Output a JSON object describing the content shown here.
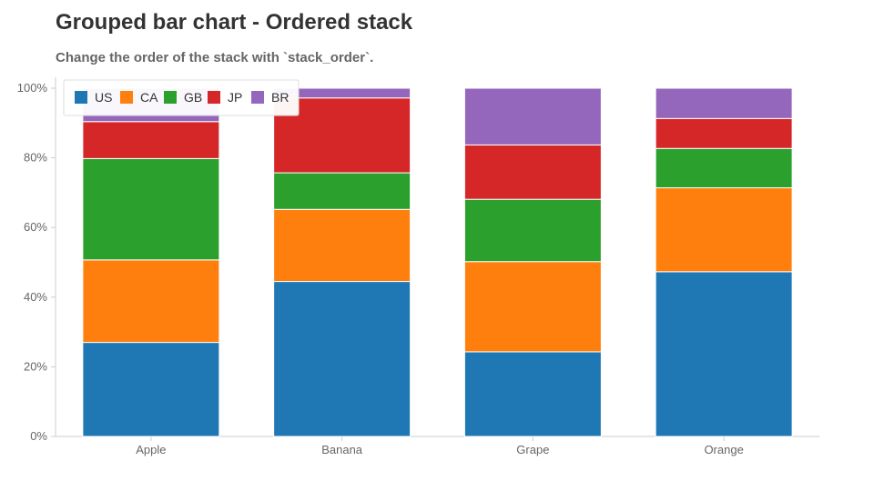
{
  "header": {
    "title": "Grouped bar chart - Ordered stack",
    "subtitle": "Change the order of the stack with `stack_order`."
  },
  "chart_data": {
    "type": "bar",
    "stacked": true,
    "normalized": true,
    "categories": [
      "Apple",
      "Banana",
      "Grape",
      "Orange"
    ],
    "series": [
      {
        "name": "US",
        "color": "#1f77b4",
        "values": [
          27,
          44.5,
          24.3,
          47.3
        ]
      },
      {
        "name": "CA",
        "color": "#ff7f0e",
        "values": [
          23.7,
          20.7,
          25.9,
          24.1
        ]
      },
      {
        "name": "GB",
        "color": "#2ca02c",
        "values": [
          29.1,
          10.5,
          17.9,
          11.3
        ]
      },
      {
        "name": "JP",
        "color": "#d62728",
        "values": [
          10.6,
          21.5,
          15.6,
          8.6
        ]
      },
      {
        "name": "BR",
        "color": "#9467bd",
        "values": [
          9.6,
          2.8,
          16.3,
          8.7
        ]
      }
    ],
    "yticks": [
      "0%",
      "20%",
      "40%",
      "60%",
      "80%",
      "100%"
    ],
    "ylim": [
      0,
      100
    ],
    "legend_position": "top-left",
    "grid": false
  }
}
